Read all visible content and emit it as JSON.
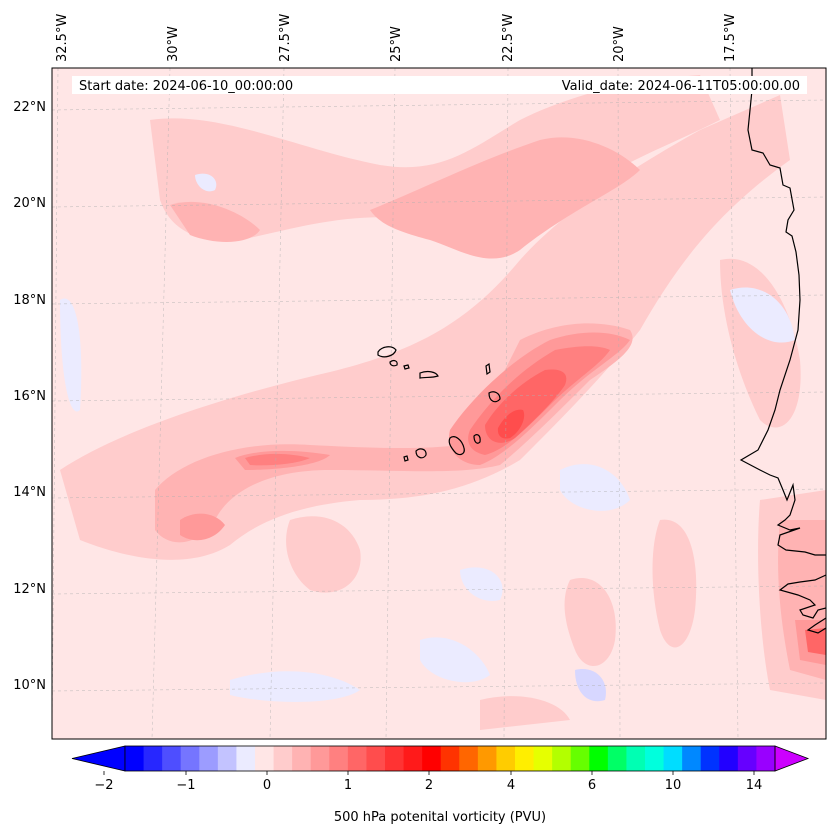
{
  "map": {
    "start_date": "Start date: 2024-06-10_00:00:00",
    "valid_date": "Valid_date: 2024-06-11T05:00:00.00",
    "longitude_labels": [
      "32.5°W",
      "30°W",
      "27.5°W",
      "25°W",
      "22.5°W",
      "20°W",
      "17.5°W"
    ],
    "latitude_labels": [
      "22°N",
      "20°N",
      "18°N",
      "16°N",
      "14°N",
      "12°N",
      "10°N"
    ],
    "field": "500 hPa potenital vorticity (PVU)",
    "coastline_color": "#000000"
  },
  "colorbar": {
    "title": "500 hPa potenital vorticity (PVU)",
    "tick_labels": [
      "−2",
      "−1",
      "0",
      "1",
      "2",
      "4",
      "6",
      "10",
      "14"
    ],
    "colors": [
      "#0000ff",
      "#2727ff",
      "#4e4eff",
      "#7575ff",
      "#9c9cff",
      "#c3c3ff",
      "#ebebff",
      "#ffe6e6",
      "#ffcccc",
      "#ffb3b3",
      "#ff9999",
      "#ff8080",
      "#ff6666",
      "#ff4d4d",
      "#ff3333",
      "#ff1a1a",
      "#ff0000",
      "#ff3300",
      "#ff6600",
      "#ff9900",
      "#ffcc00",
      "#ffee00",
      "#e6ff00",
      "#b3ff00",
      "#66ff00",
      "#00ff00",
      "#00ff66",
      "#00ffb3",
      "#00ffdd",
      "#00ddff",
      "#0088ff",
      "#0033ff",
      "#2200ff",
      "#6600ff",
      "#9900ff"
    ],
    "under_color": "#0000ff",
    "over_color": "#cc00ff"
  }
}
